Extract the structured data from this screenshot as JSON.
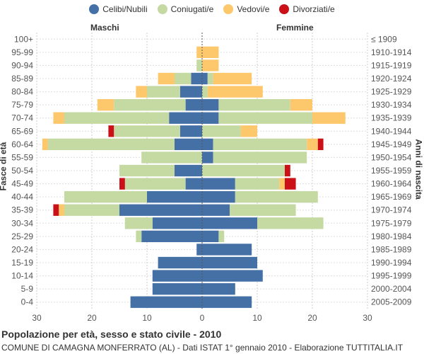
{
  "legend": {
    "items": [
      {
        "name": "Celibi/Nubili",
        "color": "#4470a6"
      },
      {
        "name": "Coniugati/e",
        "color": "#c5d9a3"
      },
      {
        "name": "Vedovi/e",
        "color": "#fdc76c"
      },
      {
        "name": "Divorziati/e",
        "color": "#cc1018"
      }
    ]
  },
  "labels": {
    "left_side": "Maschi",
    "right_side": "Femmine",
    "y_left": "Fasce di età",
    "y_right": "Anni di nascita"
  },
  "footer": {
    "title": "Popolazione per età, sesso e stato civile - 2010",
    "subtitle": "COMUNE DI CAMAGNA MONFERRATO (AL) - Dati ISTAT 1° gennaio 2010 - Elaborazione TUTTITALIA.IT"
  },
  "chart_data": {
    "type": "bar",
    "orientation": "horizontal-pyramid",
    "x_ticks": [
      "30",
      "20",
      "10",
      "0",
      "10",
      "20",
      "30"
    ],
    "xlim": [
      -30,
      30
    ],
    "age_groups": [
      "100+",
      "95-99",
      "90-94",
      "85-89",
      "80-84",
      "75-79",
      "70-74",
      "65-69",
      "60-64",
      "55-59",
      "50-54",
      "45-49",
      "40-44",
      "35-39",
      "30-34",
      "25-29",
      "20-24",
      "15-19",
      "10-14",
      "5-9",
      "0-4"
    ],
    "birth_years": [
      "≤ 1909",
      "1910-1914",
      "1915-1919",
      "1920-1924",
      "1925-1929",
      "1930-1934",
      "1935-1939",
      "1940-1944",
      "1945-1949",
      "1950-1954",
      "1955-1959",
      "1960-1964",
      "1965-1969",
      "1970-1974",
      "1975-1979",
      "1980-1984",
      "1985-1989",
      "1990-1994",
      "1995-1999",
      "2000-2004",
      "2005-2009"
    ],
    "series_order": [
      "Celibi/Nubili",
      "Coniugati/e",
      "Vedovi/e",
      "Divorziati/e"
    ],
    "males": [
      [
        0,
        0,
        0,
        0
      ],
      [
        0,
        0,
        1,
        0
      ],
      [
        0,
        1,
        0,
        0
      ],
      [
        2,
        3,
        3,
        0
      ],
      [
        4,
        6,
        2,
        0
      ],
      [
        3,
        13,
        3,
        0
      ],
      [
        6,
        19,
        2,
        0
      ],
      [
        4,
        12,
        0,
        1
      ],
      [
        5,
        23,
        1,
        0
      ],
      [
        0,
        11,
        0,
        0
      ],
      [
        5,
        10,
        0,
        0
      ],
      [
        3,
        11,
        0,
        1
      ],
      [
        10,
        15,
        0,
        0
      ],
      [
        15,
        10,
        1,
        1
      ],
      [
        9,
        5,
        0,
        0
      ],
      [
        11,
        1,
        0,
        0
      ],
      [
        1,
        0,
        0,
        0
      ],
      [
        8,
        0,
        0,
        0
      ],
      [
        9,
        0,
        0,
        0
      ],
      [
        9,
        0,
        0,
        0
      ],
      [
        13,
        0,
        0,
        0
      ]
    ],
    "females": [
      [
        0,
        0,
        0,
        0
      ],
      [
        0,
        0,
        3,
        0
      ],
      [
        0,
        0,
        3,
        0
      ],
      [
        1,
        1,
        7,
        0
      ],
      [
        0,
        1,
        10,
        0
      ],
      [
        3,
        13,
        4,
        0
      ],
      [
        3,
        17,
        6,
        0
      ],
      [
        0,
        7,
        3,
        0
      ],
      [
        2,
        17,
        2,
        1
      ],
      [
        2,
        17,
        0,
        0
      ],
      [
        0,
        15,
        0,
        1
      ],
      [
        6,
        8,
        1,
        2
      ],
      [
        6,
        15,
        0,
        0
      ],
      [
        5,
        12,
        0,
        0
      ],
      [
        10,
        12,
        0,
        0
      ],
      [
        3,
        1,
        0,
        0
      ],
      [
        9,
        0,
        0,
        0
      ],
      [
        10,
        0,
        0,
        0
      ],
      [
        11,
        0,
        0,
        0
      ],
      [
        6,
        0,
        0,
        0
      ],
      [
        9,
        0,
        0,
        0
      ]
    ]
  }
}
